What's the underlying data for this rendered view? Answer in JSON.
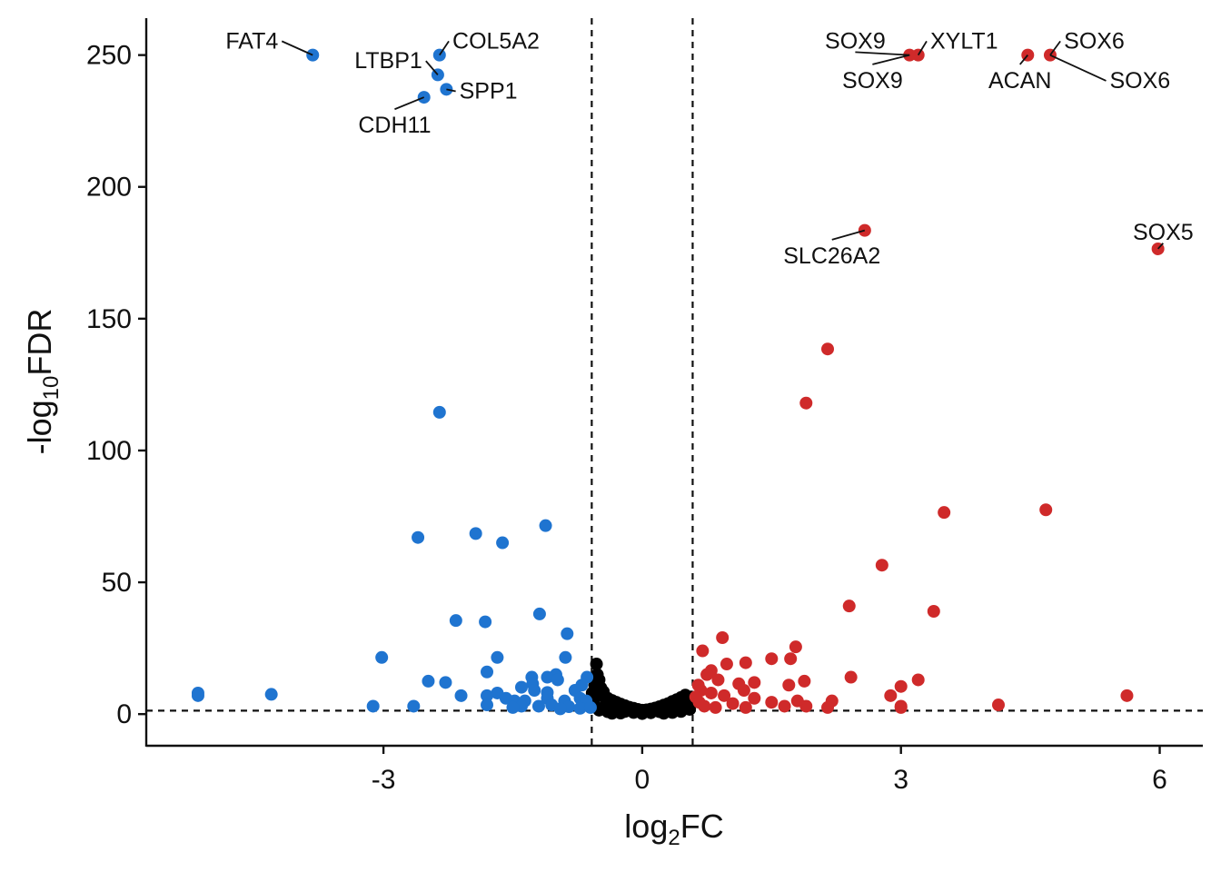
{
  "chart_data": {
    "type": "scatter",
    "xlabel_main": "log",
    "xlabel_sub": "2",
    "xlabel_tail": "FC",
    "ylabel_main": "-log",
    "ylabel_sub": "10",
    "ylabel_tail": "FDR",
    "xlim": [
      -5.75,
      6.5
    ],
    "ylim": [
      -12,
      264
    ],
    "xticks": [
      {
        "value": -3,
        "label": "-3"
      },
      {
        "value": 0,
        "label": "0"
      },
      {
        "value": 3,
        "label": "3"
      },
      {
        "value": 6,
        "label": "6"
      }
    ],
    "yticks": [
      {
        "value": 0,
        "label": "0"
      },
      {
        "value": 50,
        "label": "50"
      },
      {
        "value": 100,
        "label": "100"
      },
      {
        "value": 150,
        "label": "150"
      },
      {
        "value": 200,
        "label": "200"
      },
      {
        "value": 250,
        "label": "250"
      }
    ],
    "thresholds": {
      "log2fc": [
        -0.585,
        0.585
      ],
      "neg_log10_fdr": 1.3
    },
    "colors": {
      "down": "#1f74d0",
      "up": "#cf2a2a",
      "ns": "#000000"
    },
    "series": [
      {
        "group": "down",
        "points": [
          [
            -3.82,
            250
          ],
          [
            -2.35,
            250
          ],
          [
            -2.37,
            242.5
          ],
          [
            -2.27,
            237
          ],
          [
            -2.53,
            234
          ],
          [
            -2.35,
            114.5
          ],
          [
            -1.12,
            71.5
          ],
          [
            -1.93,
            68.5
          ],
          [
            -2.6,
            67
          ],
          [
            -1.62,
            65
          ],
          [
            -1.19,
            38
          ],
          [
            -0.87,
            30.5
          ],
          [
            -2.16,
            35.5
          ],
          [
            -1.82,
            35
          ],
          [
            -3.02,
            21.5
          ],
          [
            -1.68,
            21.5
          ],
          [
            -0.89,
            21.5
          ],
          [
            -1.8,
            16
          ],
          [
            -1.0,
            15
          ],
          [
            -2.48,
            12.5
          ],
          [
            -2.28,
            12
          ],
          [
            -1.28,
            14
          ],
          [
            -1.27,
            11.5
          ],
          [
            -1.1,
            14
          ],
          [
            -0.98,
            13
          ],
          [
            -0.64,
            14
          ],
          [
            -0.7,
            11
          ],
          [
            -1.4,
            10.2
          ],
          [
            -1.25,
            9
          ],
          [
            -1.1,
            8.2
          ],
          [
            -0.78,
            9
          ],
          [
            -5.15,
            8
          ],
          [
            -5.15,
            7
          ],
          [
            -4.3,
            7.5
          ],
          [
            -2.1,
            7
          ],
          [
            -1.8,
            7
          ],
          [
            -1.68,
            8
          ],
          [
            -1.58,
            6
          ],
          [
            -1.48,
            5
          ],
          [
            -1.36,
            5
          ],
          [
            -1.1,
            6
          ],
          [
            -0.9,
            5
          ],
          [
            -0.72,
            6
          ],
          [
            -0.65,
            5
          ],
          [
            -3.12,
            3
          ],
          [
            -2.65,
            3
          ],
          [
            -1.8,
            3.5
          ],
          [
            -1.4,
            3
          ],
          [
            -1.2,
            3
          ],
          [
            -1.05,
            3.5
          ],
          [
            -0.85,
            2.8
          ],
          [
            -0.72,
            2.2
          ],
          [
            -0.6,
            2.5
          ],
          [
            -1.5,
            2.5
          ],
          [
            -0.95,
            2
          ]
        ]
      },
      {
        "group": "up",
        "points": [
          [
            3.1,
            250
          ],
          [
            3.2,
            250
          ],
          [
            4.47,
            250
          ],
          [
            4.73,
            250
          ],
          [
            2.58,
            183.5
          ],
          [
            5.98,
            176.5
          ],
          [
            2.15,
            138.5
          ],
          [
            1.9,
            118
          ],
          [
            4.68,
            77.5
          ],
          [
            3.5,
            76.5
          ],
          [
            2.78,
            56.5
          ],
          [
            2.4,
            41
          ],
          [
            3.38,
            39
          ],
          [
            0.93,
            29
          ],
          [
            1.78,
            25.5
          ],
          [
            0.7,
            24
          ],
          [
            1.2,
            19.5
          ],
          [
            0.98,
            19
          ],
          [
            1.5,
            21
          ],
          [
            1.72,
            21
          ],
          [
            0.8,
            16.5
          ],
          [
            0.75,
            15
          ],
          [
            0.88,
            13
          ],
          [
            1.12,
            11.5
          ],
          [
            1.3,
            12
          ],
          [
            1.7,
            11
          ],
          [
            1.88,
            12.5
          ],
          [
            2.42,
            14
          ],
          [
            3.2,
            13
          ],
          [
            3.0,
            10.5
          ],
          [
            0.65,
            11
          ],
          [
            0.68,
            9
          ],
          [
            0.8,
            8
          ],
          [
            0.95,
            7
          ],
          [
            1.18,
            9
          ],
          [
            1.3,
            6
          ],
          [
            1.5,
            4.5
          ],
          [
            1.65,
            3
          ],
          [
            1.9,
            3
          ],
          [
            2.2,
            5
          ],
          [
            2.15,
            2.5
          ],
          [
            2.88,
            7
          ],
          [
            3.0,
            3
          ],
          [
            3.0,
            2.5
          ],
          [
            4.13,
            3.5
          ],
          [
            5.62,
            7
          ],
          [
            1.05,
            4
          ],
          [
            0.72,
            3
          ],
          [
            0.85,
            2.5
          ],
          [
            1.2,
            2.5
          ],
          [
            0.62,
            6.5
          ],
          [
            0.66,
            4.5
          ],
          [
            1.8,
            5
          ]
        ]
      },
      {
        "group": "ns",
        "points": [
          [
            -0.53,
            19
          ],
          [
            -0.52,
            15
          ],
          [
            -0.5,
            13
          ],
          [
            -0.55,
            11
          ],
          [
            -0.48,
            10
          ],
          [
            -0.45,
            8.5
          ],
          [
            -0.5,
            7
          ],
          [
            -0.4,
            6
          ],
          [
            -0.35,
            5.2
          ],
          [
            -0.3,
            4.5
          ],
          [
            -0.25,
            3.8
          ],
          [
            -0.2,
            3.2
          ],
          [
            -0.15,
            2.6
          ],
          [
            -0.1,
            2.2
          ],
          [
            -0.05,
            1.8
          ],
          [
            0.0,
            1.5
          ],
          [
            0.05,
            1.6
          ],
          [
            0.1,
            1.9
          ],
          [
            0.15,
            2.3
          ],
          [
            0.2,
            2.8
          ],
          [
            0.25,
            3.4
          ],
          [
            0.3,
            4.0
          ],
          [
            0.35,
            4.8
          ],
          [
            0.4,
            5.5
          ],
          [
            0.45,
            6.3
          ],
          [
            0.5,
            7.2
          ],
          [
            0.54,
            5.8
          ],
          [
            0.52,
            4.2
          ],
          [
            -0.55,
            3.0
          ],
          [
            -0.57,
            5.0
          ],
          [
            -0.44,
            2.8
          ],
          [
            -0.38,
            2.2
          ],
          [
            -0.3,
            1.5
          ],
          [
            -0.2,
            1.0
          ],
          [
            -0.1,
            0.6
          ],
          [
            0.0,
            0.2
          ],
          [
            0.1,
            0.5
          ],
          [
            0.2,
            0.9
          ],
          [
            0.3,
            1.4
          ],
          [
            0.4,
            2.0
          ],
          [
            0.5,
            2.7
          ],
          [
            0.56,
            3.5
          ],
          [
            -0.5,
            1.5
          ],
          [
            -0.4,
            0.9
          ],
          [
            -0.25,
            0.4
          ],
          [
            0.25,
            0.3
          ],
          [
            0.45,
            1.0
          ],
          [
            0.55,
            1.8
          ],
          [
            -0.58,
            8.0
          ],
          [
            0.57,
            6.5
          ],
          [
            -0.35,
            0.3
          ],
          [
            0.35,
            0.6
          ]
        ]
      }
    ],
    "labels": [
      {
        "text": "FAT4",
        "point": [
          -3.82,
          250
        ],
        "text_at": [
          -4.22,
          252.5
        ],
        "anchor": "end"
      },
      {
        "text": "COL5A2",
        "point": [
          -2.35,
          250
        ],
        "text_at": [
          -2.2,
          252.5
        ],
        "anchor": "start"
      },
      {
        "text": "LTBP1",
        "point": [
          -2.37,
          242.5
        ],
        "text_at": [
          -2.55,
          245
        ],
        "anchor": "end"
      },
      {
        "text": "SPP1",
        "point": [
          -2.27,
          237
        ],
        "text_at": [
          -2.12,
          233.5
        ],
        "anchor": "start"
      },
      {
        "text": "CDH11",
        "point": [
          -2.53,
          234
        ],
        "text_at": [
          -2.87,
          220.5
        ],
        "anchor": "middle"
      },
      {
        "text": "SOX9",
        "point": [
          3.1,
          250
        ],
        "text_at": [
          2.47,
          252.5
        ],
        "anchor": "middle"
      },
      {
        "text": "XYLT1",
        "point": [
          3.2,
          250
        ],
        "text_at": [
          3.34,
          252.5
        ],
        "anchor": "start"
      },
      {
        "text": "SOX9",
        "point": [
          3.1,
          250
        ],
        "text_at": [
          2.67,
          237.5
        ],
        "anchor": "middle"
      },
      {
        "text": "ACAN",
        "point": [
          4.47,
          250
        ],
        "text_at": [
          4.38,
          237.5
        ],
        "anchor": "middle"
      },
      {
        "text": "SOX6",
        "point": [
          4.73,
          250
        ],
        "text_at": [
          4.89,
          252.5
        ],
        "anchor": "start"
      },
      {
        "text": "SOX6",
        "point": [
          4.73,
          250
        ],
        "text_at": [
          5.42,
          237.5
        ],
        "anchor": "start"
      },
      {
        "text": "SLC26A2",
        "point": [
          2.58,
          183.5
        ],
        "text_at": [
          2.2,
          171
        ],
        "anchor": "middle"
      },
      {
        "text": "SOX5",
        "point": [
          5.98,
          176.5
        ],
        "text_at": [
          6.04,
          180
        ],
        "anchor": "middle"
      }
    ]
  }
}
